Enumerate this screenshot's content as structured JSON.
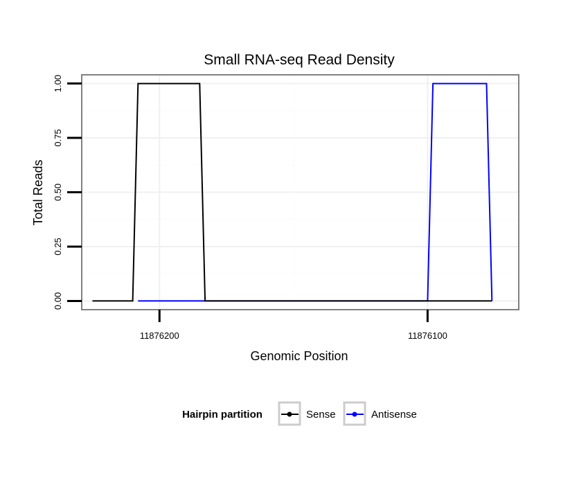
{
  "chart_data": {
    "type": "line",
    "title": "Small RNA-seq Read Density",
    "xlabel": "Genomic Position",
    "ylabel": "Total Reads",
    "xlim": [
      11876229,
      11876066
    ],
    "ylim": [
      -0.04,
      1.04
    ],
    "x_ticks": [
      11876200,
      11876100
    ],
    "x_tick_labels": [
      "11876200",
      "11876100"
    ],
    "y_ticks": [
      0,
      0.25,
      0.5,
      0.75,
      1.0
    ],
    "y_tick_labels": [
      "0.00",
      "0.25",
      "0.50",
      "0.75",
      "1.00"
    ],
    "grid": true,
    "legend": {
      "title": "Hairpin partition",
      "position": "bottom",
      "entries": [
        "Sense",
        "Antisense"
      ]
    },
    "series": [
      {
        "name": "Sense",
        "color": "#000000",
        "x": [
          11876225,
          11876210,
          11876208,
          11876185,
          11876183,
          11876100,
          11876098,
          11876078,
          11876076,
          11876076
        ],
        "values": [
          0,
          0,
          1,
          1,
          0,
          0,
          0,
          0,
          0,
          0
        ],
        "extend_to": 11876076
      },
      {
        "name": "Antisense",
        "color": "#0000ff",
        "x": [
          11876208,
          11876185,
          11876100,
          11876098,
          11876078,
          11876076
        ],
        "values": [
          0,
          0,
          0,
          1,
          1,
          0
        ]
      }
    ]
  }
}
